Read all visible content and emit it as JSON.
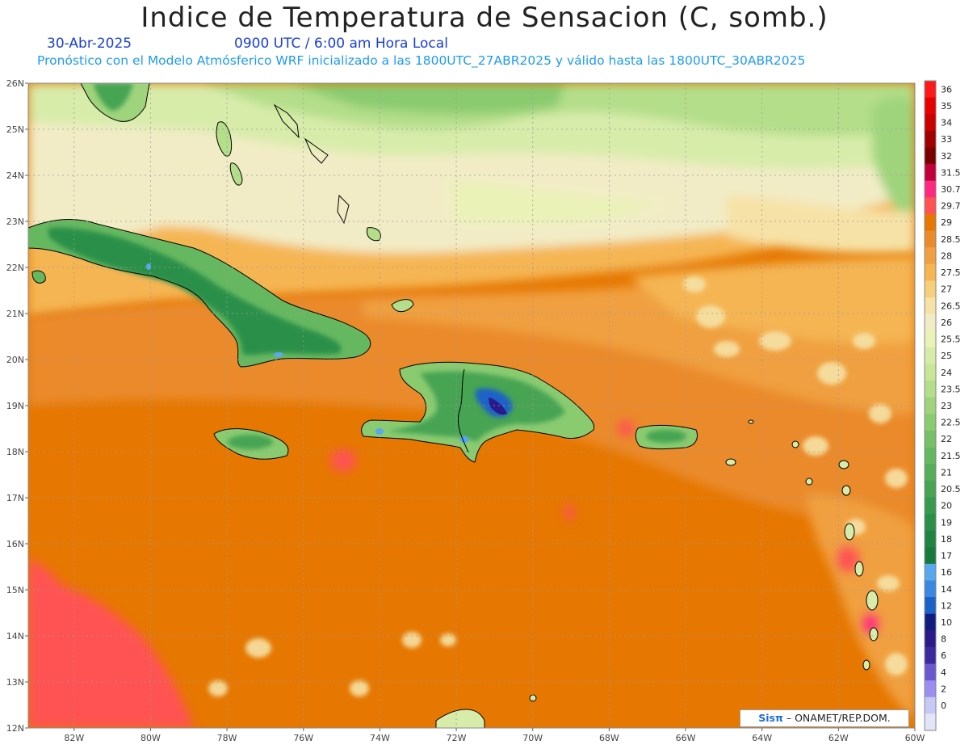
{
  "header": {
    "title": "Indice de Temperatura de Sensacion (C, somb.)",
    "date": "30-Abr-2025",
    "time": "0900 UTC / 6:00 am Hora Local",
    "subtitle": "Pronóstico con el Modelo Atmósferico WRF inicializado a las 1800UTC_27ABR2025 y válido hasta las  1800UTC_30ABR2025"
  },
  "map": {
    "lat_ticks": [
      "26N",
      "25N",
      "24N",
      "23N",
      "22N",
      "21N",
      "20N",
      "19N",
      "18N",
      "17N",
      "16N",
      "15N",
      "14N",
      "13N",
      "12N"
    ],
    "lon_ticks": [
      "82W",
      "80W",
      "78W",
      "76W",
      "74W",
      "72W",
      "70W",
      "68W",
      "66W",
      "64W",
      "62W",
      "60W"
    ],
    "lat_range": [
      12,
      26
    ],
    "lon_range": [
      -83.2,
      -60
    ],
    "grid": true
  },
  "colorbar": {
    "levels": [
      "36",
      "35",
      "34",
      "33",
      "32",
      "31.5",
      "30.7",
      "29.7",
      "29",
      "28.5",
      "28",
      "27.5",
      "27",
      "26.5",
      "26",
      "25.5",
      "25",
      "24",
      "23.5",
      "23",
      "22.5",
      "22",
      "21.5",
      "21",
      "20.5",
      "20",
      "19",
      "18",
      "17",
      "16",
      "14",
      "12",
      "10",
      "8",
      "6",
      "4",
      "2",
      "0"
    ],
    "colors": [
      "#ff1a1a",
      "#e60000",
      "#c80000",
      "#a00000",
      "#7a0000",
      "#c0003a",
      "#ff2a80",
      "#ff5252",
      "#e67700",
      "#ea8a2a",
      "#f0a040",
      "#f5b552",
      "#f7cf7a",
      "#f6e2a6",
      "#f2ecc6",
      "#eaf2b8",
      "#d8ecaa",
      "#c8e698",
      "#b4de8a",
      "#9fd47c",
      "#8acb70",
      "#78c068",
      "#66b860",
      "#55ae58",
      "#46a452",
      "#389a4c",
      "#2a9048",
      "#1f8442",
      "#157a3c",
      "#58a8f0",
      "#3a88e0",
      "#1a62c8",
      "#101c80",
      "#2a1a8c",
      "#3c2aa0",
      "#6a58d0",
      "#9a8ef0",
      "#c8c8f6",
      "#e4e4f8"
    ]
  },
  "credit": {
    "logo": "Sisπ",
    "text": " – ONAMET/REP.DOM."
  }
}
